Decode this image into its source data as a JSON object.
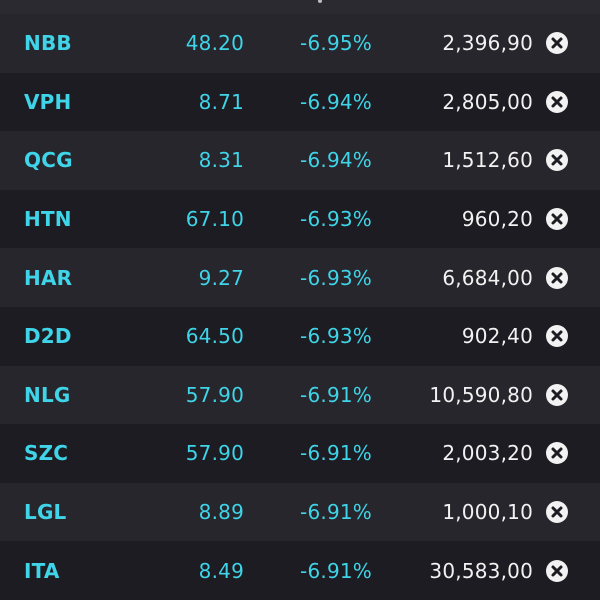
{
  "colors": {
    "background": "#1c1c22",
    "row_alt": "#26262c",
    "accent_cyan": "#3fd4e8",
    "text_white": "#f2f2f2"
  },
  "icons": {
    "remove": "close-circle-icon"
  },
  "rows": [
    {
      "symbol": "NBB",
      "price": "48.20",
      "change": "-6.95%",
      "volume": "2,396,90"
    },
    {
      "symbol": "VPH",
      "price": "8.71",
      "change": "-6.94%",
      "volume": "2,805,00"
    },
    {
      "symbol": "QCG",
      "price": "8.31",
      "change": "-6.94%",
      "volume": "1,512,60"
    },
    {
      "symbol": "HTN",
      "price": "67.10",
      "change": "-6.93%",
      "volume": "960,20"
    },
    {
      "symbol": "HAR",
      "price": "9.27",
      "change": "-6.93%",
      "volume": "6,684,00"
    },
    {
      "symbol": "D2D",
      "price": "64.50",
      "change": "-6.93%",
      "volume": "902,40"
    },
    {
      "symbol": "NLG",
      "price": "57.90",
      "change": "-6.91%",
      "volume": "10,590,80"
    },
    {
      "symbol": "SZC",
      "price": "57.90",
      "change": "-6.91%",
      "volume": "2,003,20"
    },
    {
      "symbol": "LGL",
      "price": "8.89",
      "change": "-6.91%",
      "volume": "1,000,10"
    },
    {
      "symbol": "ITA",
      "price": "8.49",
      "change": "-6.91%",
      "volume": "30,583,00"
    }
  ]
}
